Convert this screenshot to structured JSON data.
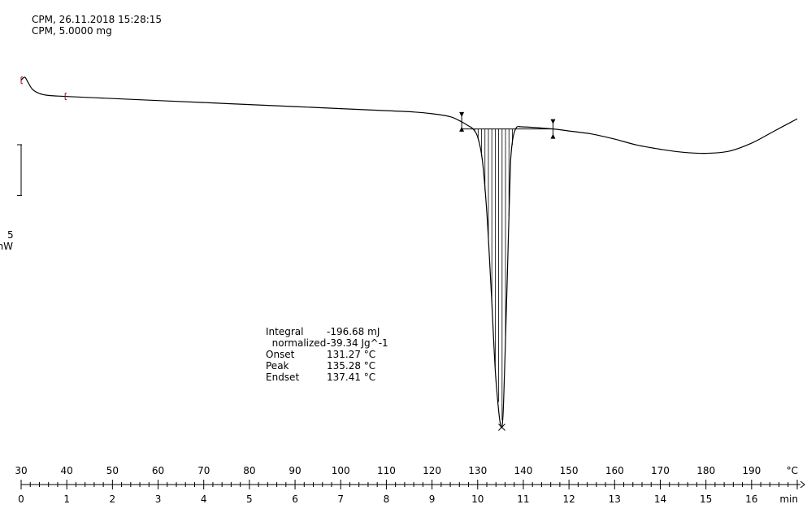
{
  "header": {
    "line1": "CPM, 26.11.2018 15:28:15",
    "line2": "CPM, 5.0000 mg"
  },
  "scale_bar": {
    "value": "5",
    "unit": "mW"
  },
  "results": [
    {
      "label": "Integral",
      "value": "-196.68 mJ"
    },
    {
      "label": "  normalized",
      "value": "-39.34 Jg^-1"
    },
    {
      "label": "Onset",
      "value": "131.27 °C"
    },
    {
      "label": "Peak",
      "value": "135.28 °C"
    },
    {
      "label": "Endset",
      "value": "137.41 °C"
    }
  ],
  "chart_data": {
    "type": "line",
    "x_temperature": {
      "unit_label": "°C",
      "ticks": [
        30,
        40,
        50,
        60,
        70,
        80,
        90,
        100,
        110,
        120,
        130,
        140,
        150,
        160,
        170,
        180,
        190
      ],
      "range": [
        30,
        200
      ]
    },
    "x_time": {
      "unit_label": "min",
      "ticks": [
        0,
        1,
        2,
        3,
        4,
        5,
        6,
        7,
        8,
        9,
        10,
        11,
        12,
        13,
        14,
        15,
        16
      ],
      "range": [
        0,
        17
      ]
    },
    "y_heat_flow_mW": {
      "scale_bar_mW": 5,
      "range": [
        -36,
        3.1
      ]
    },
    "series": [
      {
        "points": [
          [
            30,
            0.0
          ],
          [
            30.8,
            0.3
          ],
          [
            31.5,
            -0.2
          ],
          [
            32.5,
            -0.9
          ],
          [
            34,
            -1.3
          ],
          [
            36,
            -1.5
          ],
          [
            40,
            -1.6
          ],
          [
            50,
            -1.8
          ],
          [
            60,
            -2.0
          ],
          [
            70,
            -2.2
          ],
          [
            80,
            -2.4
          ],
          [
            90,
            -2.6
          ],
          [
            100,
            -2.8
          ],
          [
            110,
            -3.0
          ],
          [
            115,
            -3.1
          ],
          [
            120,
            -3.3
          ],
          [
            124,
            -3.6
          ],
          [
            126.5,
            -4.1
          ],
          [
            128,
            -4.5
          ],
          [
            129,
            -4.8
          ],
          [
            130,
            -5.6
          ],
          [
            131,
            -7.8
          ],
          [
            132,
            -13
          ],
          [
            133,
            -21
          ],
          [
            134,
            -29.5
          ],
          [
            135.28,
            -34.2
          ],
          [
            136,
            -27
          ],
          [
            137,
            -11
          ],
          [
            137.41,
            -6.8
          ],
          [
            138.3,
            -4.8
          ],
          [
            140,
            -4.6
          ],
          [
            146.5,
            -4.8
          ],
          [
            150,
            -5.0
          ],
          [
            155,
            -5.3
          ],
          [
            160,
            -5.8
          ],
          [
            165,
            -6.4
          ],
          [
            170,
            -6.8
          ],
          [
            175,
            -7.1
          ],
          [
            180,
            -7.2
          ],
          [
            185,
            -7.0
          ],
          [
            190,
            -6.2
          ],
          [
            195,
            -5.0
          ],
          [
            200,
            -3.8
          ]
        ]
      }
    ],
    "integration_limits": [
      126.5,
      146.5
    ],
    "peak_marker": [
      135.28,
      -34.2
    ]
  }
}
